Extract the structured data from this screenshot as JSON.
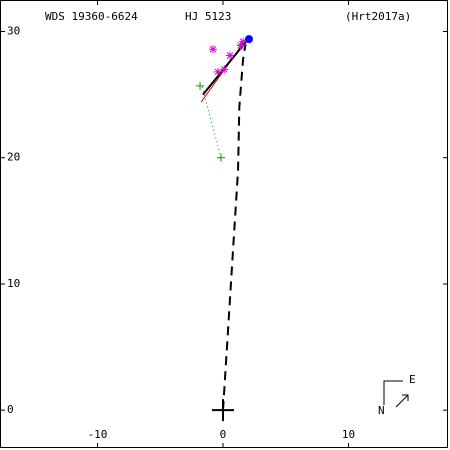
{
  "chart_data": {
    "type": "scatter",
    "title": "WDS 19360-6624",
    "subtitle": "HJ 5123",
    "reference": "(Hrt2017a)",
    "compass": {
      "east": "E",
      "north": "N"
    },
    "xlim": [
      -17.77,
      17.93
    ],
    "ylim": [
      -3.0,
      32.5
    ],
    "xticks": [
      -10,
      0,
      10
    ],
    "yticks": [
      0,
      10,
      20,
      30
    ],
    "series": [
      {
        "marker": "line",
        "dash": "9,6",
        "width": 2,
        "color": "#000000",
        "x": [
          0.0,
          0.4,
          0.8,
          1.2,
          1.3,
          1.6,
          1.8
        ],
        "y": [
          0.0,
          6.3,
          12.7,
          19.0,
          24.0,
          27.8,
          29.0
        ]
      },
      {
        "marker": "line",
        "dash": "1,3",
        "width": 1,
        "color": "#00a000",
        "x": [
          -1.65,
          -0.16
        ],
        "y": [
          25.6,
          20.0
        ]
      },
      {
        "marker": "line",
        "dash": "",
        "width": 1,
        "color": "#e00000",
        "x": [
          -1.75,
          1.7
        ],
        "y": [
          24.4,
          29.2
        ]
      },
      {
        "marker": "line",
        "dash": "",
        "width": 2,
        "color": "#000000",
        "x": [
          -1.6,
          2.0
        ],
        "y": [
          25.0,
          29.4
        ]
      },
      {
        "marker": "plus",
        "color": "#00a000",
        "x": [
          -1.83,
          -0.16,
          1.5
        ],
        "y": [
          25.7,
          20.0,
          28.9
        ]
      },
      {
        "marker": "asterisk",
        "color": "#e000e0",
        "x": [
          -0.8,
          0.56,
          -0.4,
          0.1,
          1.4,
          1.6
        ],
        "y": [
          28.6,
          28.1,
          26.8,
          27.0,
          28.9,
          29.2
        ]
      },
      {
        "marker": "dot",
        "color": "#0000ff",
        "x": [
          2.07
        ],
        "y": [
          29.4
        ]
      },
      {
        "marker": "cross",
        "color": "#000000",
        "x": [
          0
        ],
        "y": [
          0
        ]
      }
    ]
  }
}
